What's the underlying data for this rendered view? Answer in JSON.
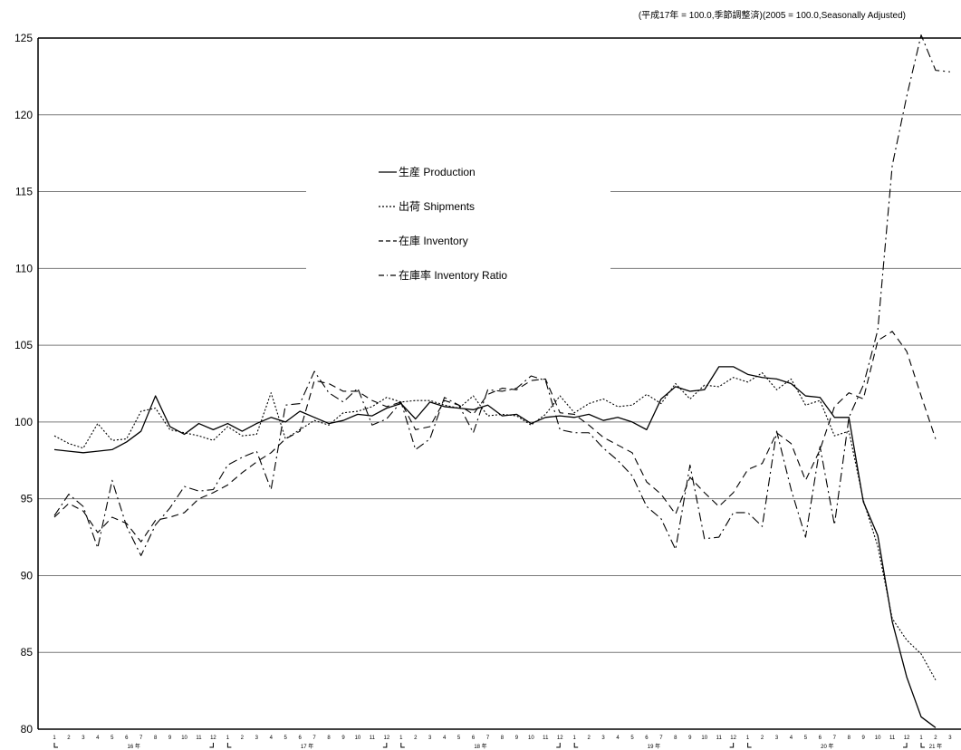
{
  "chart_data": {
    "type": "line",
    "title": "",
    "note": "(平成17年 = 100.0,季節調整済)(2005 = 100.0,Seasonally Adjusted)",
    "xlabel": "",
    "ylabel": "",
    "ylim": [
      80,
      125
    ],
    "y_ticks": [
      80,
      85,
      90,
      95,
      100,
      105,
      110,
      115,
      120,
      125
    ],
    "grid": "horizontal",
    "x_month_labels": [
      "1",
      "2",
      "3",
      "4",
      "5",
      "6",
      "7",
      "8",
      "9",
      "10",
      "11",
      "12",
      "1",
      "2",
      "3",
      "4",
      "5",
      "6",
      "7",
      "8",
      "9",
      "10",
      "11",
      "12",
      "1",
      "2",
      "3",
      "4",
      "5",
      "6",
      "7",
      "8",
      "9",
      "10",
      "11",
      "12",
      "1",
      "2",
      "3",
      "4",
      "5",
      "6",
      "7",
      "8",
      "9",
      "10",
      "11",
      "12",
      "1",
      "2",
      "3",
      "4",
      "5",
      "6",
      "7",
      "8",
      "9",
      "10",
      "11",
      "12",
      "1",
      "2",
      "3"
    ],
    "year_labels": [
      {
        "text": "16 年",
        "at_index": 5.5
      },
      {
        "text": "17 年",
        "at_index": 17.5
      },
      {
        "text": "18 年",
        "at_index": 29.5
      },
      {
        "text": "19 年",
        "at_index": 41.5
      },
      {
        "text": "20 年",
        "at_index": 53.5
      },
      {
        "text": "21 年",
        "at_index": 61
      }
    ],
    "legend_position": "center-left",
    "series": [
      {
        "name": "生産 Production",
        "dash": "solid",
        "values": [
          98.2,
          98.1,
          98.0,
          98.1,
          98.2,
          98.7,
          99.4,
          101.7,
          99.7,
          99.2,
          99.9,
          99.5,
          99.9,
          99.4,
          99.9,
          100.3,
          100.0,
          100.7,
          100.3,
          99.9,
          100.1,
          100.5,
          100.4,
          100.9,
          101.2,
          100.2,
          101.3,
          101.0,
          100.9,
          100.8,
          101.1,
          100.4,
          100.5,
          99.9,
          100.3,
          100.4,
          100.3,
          100.5,
          100.1,
          100.3,
          100.0,
          99.5,
          101.5,
          102.3,
          102.0,
          102.1,
          103.6,
          103.6,
          103.1,
          102.9,
          102.8,
          102.5,
          101.7,
          101.6,
          100.3,
          100.3,
          94.8,
          92.6,
          87.0,
          83.4,
          80.8,
          80.1
        ]
      },
      {
        "name": "出荷 Shipments",
        "dash": "dot",
        "values": [
          99.1,
          98.6,
          98.3,
          99.9,
          98.8,
          98.9,
          100.7,
          100.9,
          99.5,
          99.3,
          99.1,
          98.8,
          99.7,
          99.1,
          99.2,
          101.9,
          98.9,
          99.5,
          100.1,
          99.8,
          100.6,
          100.7,
          101.0,
          101.6,
          101.3,
          101.4,
          101.4,
          101.1,
          100.9,
          101.7,
          100.4,
          100.5,
          100.4,
          99.8,
          100.5,
          101.7,
          100.6,
          101.2,
          101.5,
          101.0,
          101.1,
          101.8,
          101.2,
          102.5,
          101.5,
          102.4,
          102.3,
          102.9,
          102.6,
          103.2,
          102.1,
          102.8,
          101.1,
          101.4,
          99.1,
          99.4,
          94.9,
          91.9,
          87.2,
          85.8,
          84.9,
          83.2
        ]
      },
      {
        "name": "在庫 Inventory",
        "dash": "dash",
        "values": [
          93.8,
          94.7,
          94.2,
          92.8,
          93.8,
          93.4,
          92.2,
          93.6,
          93.8,
          94.1,
          95.0,
          95.4,
          95.9,
          96.7,
          97.4,
          98.0,
          98.9,
          99.4,
          102.7,
          102.5,
          102.0,
          102.0,
          101.4,
          101.0,
          101.3,
          99.5,
          99.7,
          101.4,
          101.1,
          100.5,
          101.8,
          102.2,
          102.1,
          102.7,
          102.8,
          100.6,
          100.5,
          99.8,
          99.0,
          98.5,
          98.0,
          96.1,
          95.3,
          94.0,
          96.4,
          95.4,
          94.5,
          95.4,
          96.9,
          97.3,
          99.3,
          98.6,
          96.2,
          98.2,
          101.0,
          101.9,
          101.5,
          105.3,
          105.9,
          104.6,
          101.7,
          98.9
        ]
      },
      {
        "name": "在庫率 Inventory Ratio",
        "dash": "dashdot",
        "values": [
          93.9,
          95.3,
          94.5,
          91.8,
          96.2,
          93.2,
          91.3,
          93.3,
          94.4,
          95.8,
          95.5,
          95.6,
          97.2,
          97.7,
          98.1,
          95.6,
          101.1,
          101.2,
          103.3,
          101.9,
          101.3,
          102.2,
          99.8,
          100.2,
          101.3,
          98.2,
          98.9,
          101.6,
          101.1,
          99.3,
          102.1,
          102.0,
          102.2,
          103.0,
          102.7,
          99.5,
          99.3,
          99.3,
          98.3,
          97.5,
          96.5,
          94.5,
          93.7,
          91.7,
          97.2,
          92.4,
          92.5,
          94.1,
          94.1,
          93.2,
          99.4,
          95.6,
          92.5,
          98.4,
          93.3,
          100.3,
          102.4,
          106.0,
          116.7,
          121.2,
          125.2,
          122.9,
          122.8
        ]
      }
    ]
  }
}
